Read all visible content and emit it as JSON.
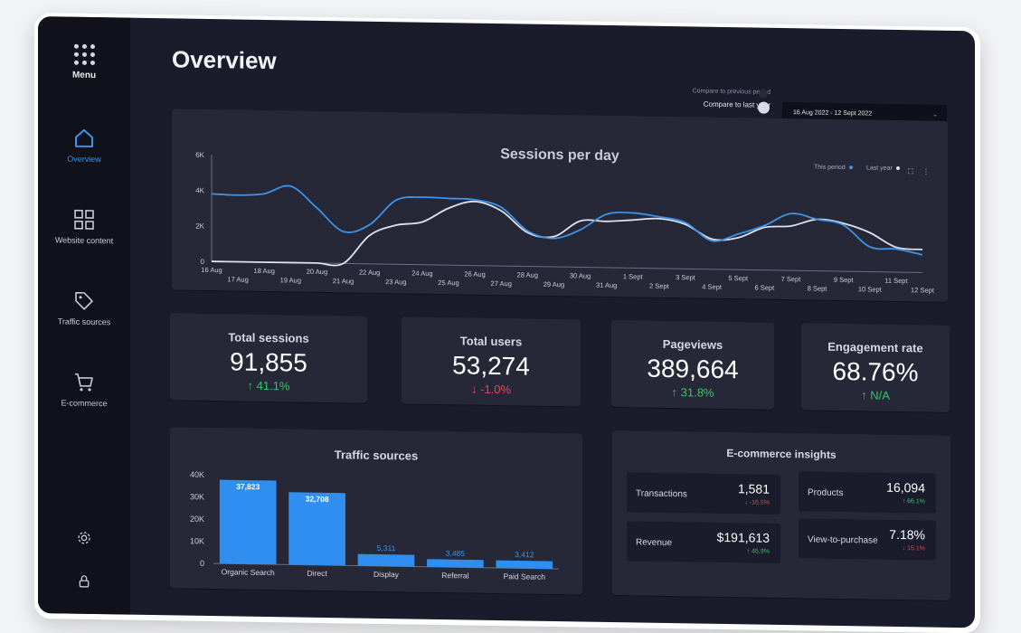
{
  "sidebar": {
    "menu_label": "Menu",
    "items": [
      {
        "label": "Overview",
        "icon": "home-icon",
        "active": true
      },
      {
        "label": "Website content",
        "icon": "grid-icon"
      },
      {
        "label": "Traffic sources",
        "icon": "tag-icon"
      },
      {
        "label": "E-commerce",
        "icon": "cart-icon"
      }
    ],
    "bottom_icons": [
      "gear-icon",
      "lock-icon"
    ]
  },
  "header": {
    "title": "Overview",
    "compare_previous": "Compare to previous period",
    "compare_last_year": "Compare to last year",
    "date_range": "16 Aug 2022 - 12 Sept 2022",
    "date_caret": "⌄"
  },
  "sessions_chart": {
    "title": "Sessions per day",
    "legend_this": "This period",
    "legend_last": "Last year",
    "colors": {
      "this_period": "#3b93ea",
      "last_year": "#dfe3ef"
    }
  },
  "kpis": [
    {
      "label": "Total sessions",
      "value": "91,855",
      "delta": "41.1%",
      "dir": "up"
    },
    {
      "label": "Total users",
      "value": "53,274",
      "delta": "-1.0%",
      "dir": "down"
    },
    {
      "label": "Pageviews",
      "value": "389,664",
      "delta": "31.8%",
      "dir": "up"
    },
    {
      "label": "Engagement rate",
      "value": "68.76%",
      "delta": "N/A",
      "dir": "up"
    }
  ],
  "traffic": {
    "title": "Traffic sources"
  },
  "ecommerce": {
    "title": "E-commerce insights",
    "items": [
      {
        "label": "Transactions",
        "value": "1,581",
        "delta": "-16.5%",
        "dir": "down"
      },
      {
        "label": "Products",
        "value": "16,094",
        "delta": "66.1%",
        "dir": "up"
      },
      {
        "label": "Revenue",
        "value": "$191,613",
        "delta": "45.9%",
        "dir": "up"
      },
      {
        "label": "View-to-purchase",
        "value": "7.18%",
        "delta": "15.1%",
        "dir": "down"
      }
    ]
  },
  "chart_data": [
    {
      "type": "line",
      "title": "Sessions per day",
      "x": [
        "16 Aug",
        "17 Aug",
        "18 Aug",
        "19 Aug",
        "20 Aug",
        "21 Aug",
        "22 Aug",
        "23 Aug",
        "24 Aug",
        "25 Aug",
        "26 Aug",
        "27 Aug",
        "28 Aug",
        "29 Aug",
        "30 Aug",
        "31 Aug",
        "1 Sept",
        "2 Sept",
        "3 Sept",
        "4 Sept",
        "5 Sept",
        "6 Sept",
        "7 Sept",
        "8 Sept",
        "9 Sept",
        "10 Sept",
        "11 Sept",
        "12 Sept"
      ],
      "series": [
        {
          "name": "This period",
          "values": [
            3800,
            3750,
            3850,
            4300,
            3100,
            1800,
            2200,
            3600,
            3800,
            3750,
            3700,
            3300,
            2000,
            1600,
            2100,
            3000,
            3100,
            2900,
            2600,
            1600,
            2000,
            2500,
            3200,
            2900,
            2600,
            1400,
            1300,
            1000
          ]
        },
        {
          "name": "Last year",
          "values": [
            0,
            0,
            0,
            0,
            0,
            0,
            1600,
            2200,
            2400,
            3200,
            3600,
            3100,
            1900,
            1700,
            2600,
            2600,
            2700,
            2800,
            2500,
            1700,
            1800,
            2400,
            2500,
            2900,
            2700,
            2200,
            1400,
            1300
          ]
        }
      ],
      "ylim": [
        0,
        6000
      ],
      "yticks": [
        "0",
        "2K",
        "4K",
        "6K"
      ],
      "legend": "top-right"
    },
    {
      "type": "bar",
      "title": "Traffic sources",
      "categories": [
        "Organic Search",
        "Direct",
        "Display",
        "Referral",
        "Paid Search"
      ],
      "values": [
        37823,
        32708,
        5311,
        3485,
        3412
      ],
      "labels": [
        "37,823",
        "32,708",
        "5,311",
        "3,485",
        "3,412"
      ],
      "ylim": [
        0,
        40000
      ],
      "yticks": [
        "0",
        "10K",
        "20K",
        "30K",
        "40K"
      ]
    }
  ]
}
